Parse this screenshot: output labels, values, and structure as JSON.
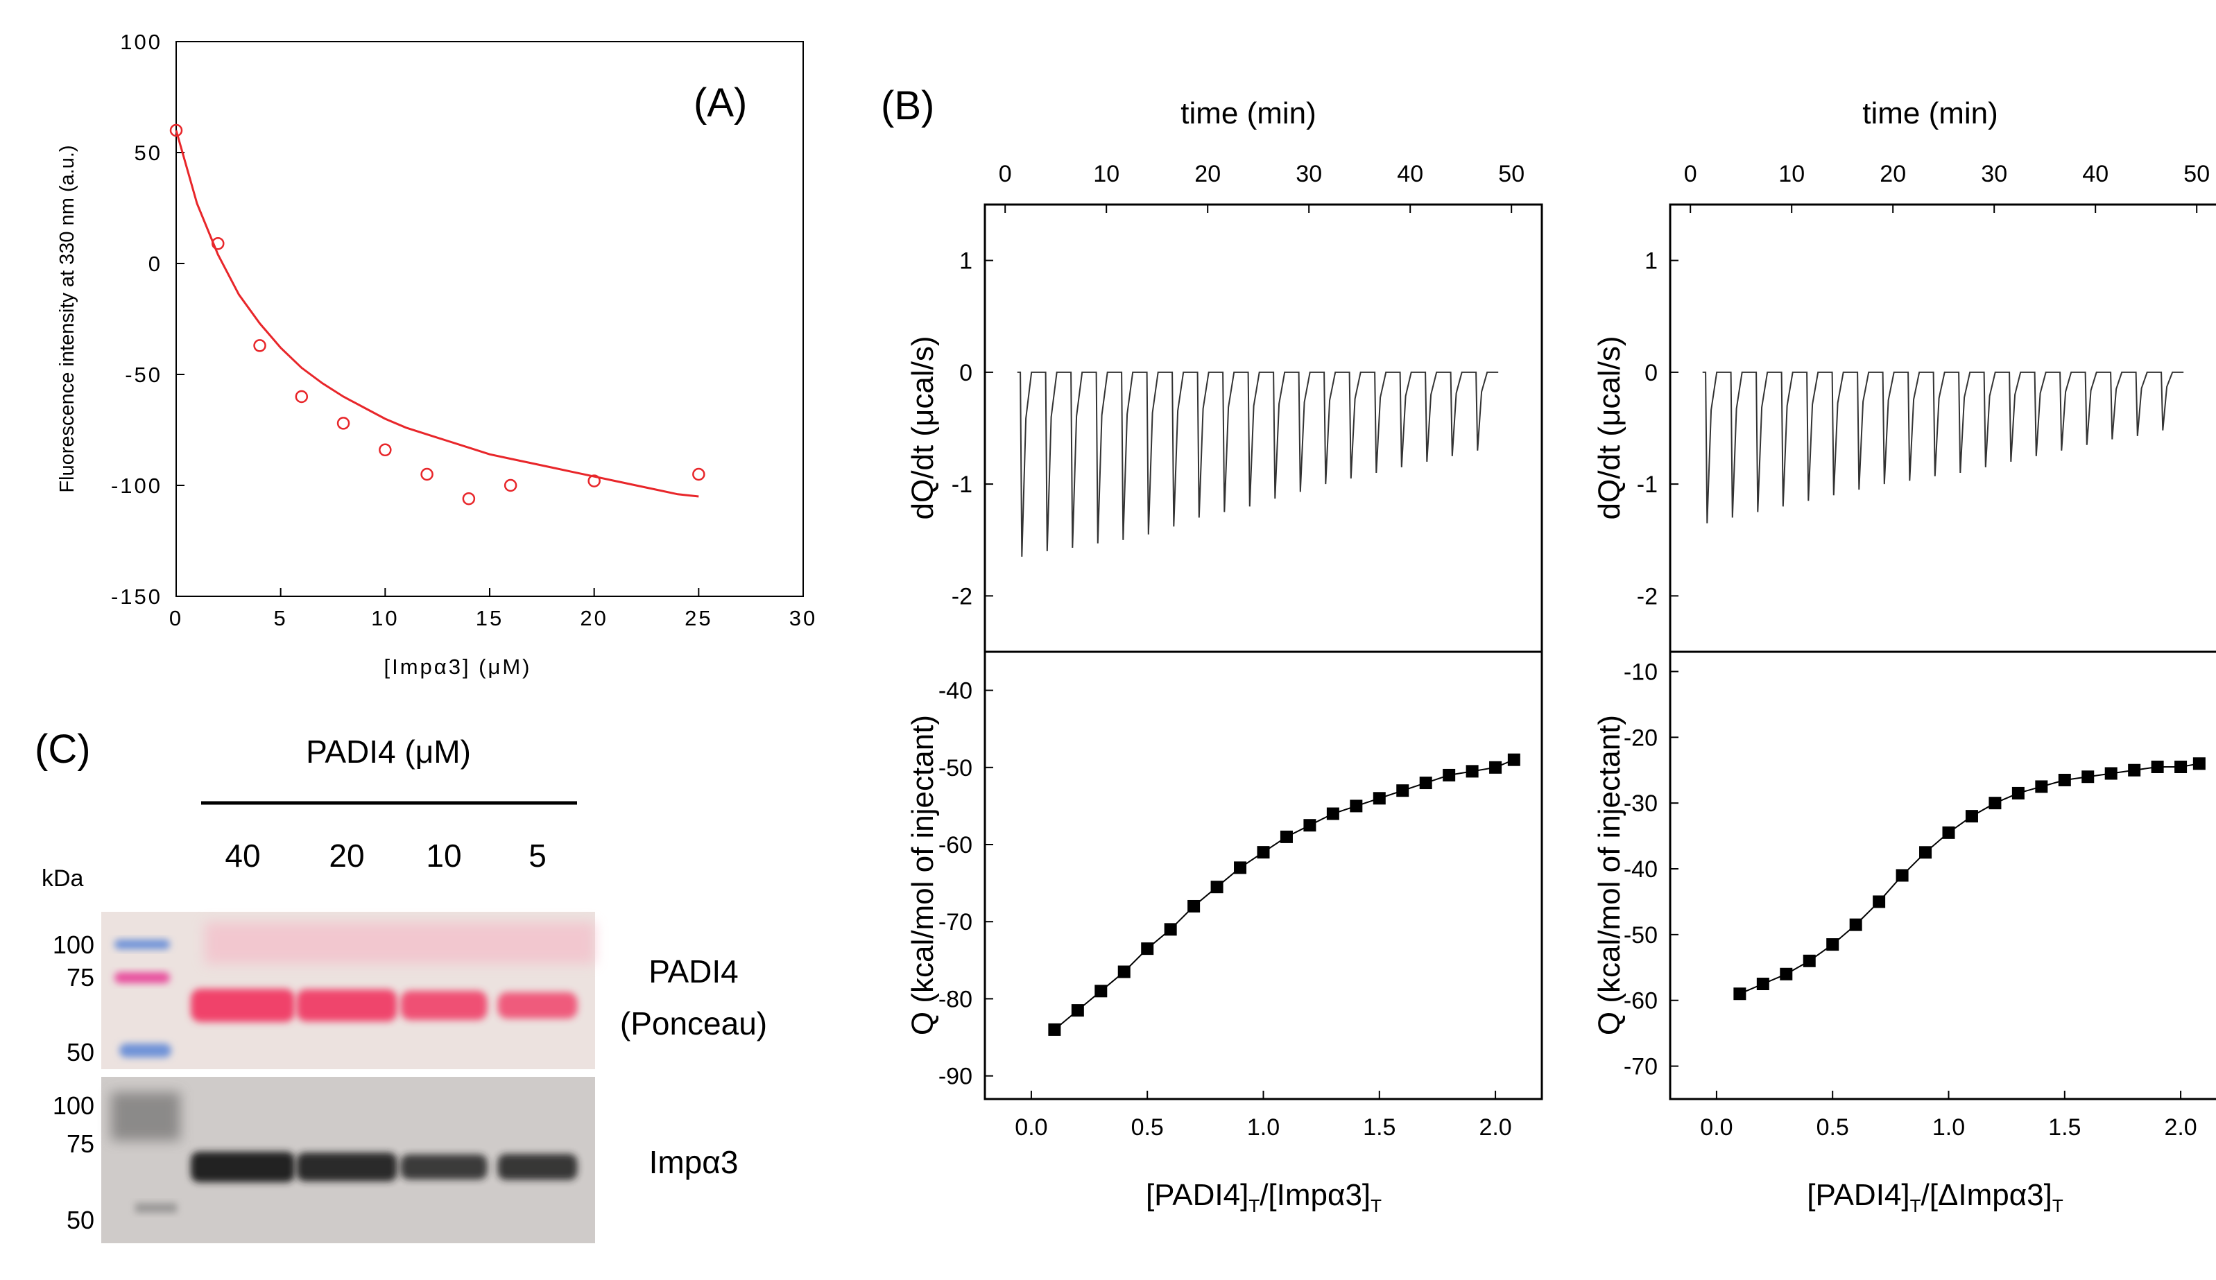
{
  "panel_labels": {
    "a": "(A)",
    "b": "(B)",
    "c": "(C)"
  },
  "chart_data": [
    {
      "id": "A",
      "type": "scatter",
      "title": "(A)",
      "xlabel": "[Impα3] (μM)",
      "ylabel": "Fluorescence intensity at 330 nm (a.u.)",
      "xlim": [
        0,
        30
      ],
      "ylim": [
        -150,
        100
      ],
      "xticks": [
        0,
        5,
        10,
        15,
        20,
        25,
        30
      ],
      "yticks": [
        100,
        50,
        0,
        -50,
        -100,
        -150
      ],
      "points": {
        "x": [
          0,
          2,
          4,
          6,
          8,
          10,
          12,
          14,
          16,
          20,
          25
        ],
        "y": [
          60,
          9,
          -37,
          -60,
          -72,
          -84,
          -95,
          -106,
          -100,
          -98,
          -95
        ]
      },
      "fit_curve": {
        "x": [
          0,
          1,
          2,
          3,
          4,
          5,
          6,
          7,
          8,
          9,
          10,
          11,
          12,
          13,
          14,
          15,
          16,
          17,
          18,
          19,
          20,
          21,
          22,
          23,
          24,
          25
        ],
        "y": [
          60,
          27,
          4,
          -14,
          -27,
          -38,
          -47,
          -54,
          -60,
          -65,
          -70,
          -74,
          -77,
          -80,
          -83,
          -86,
          -88,
          -90,
          -92,
          -94,
          -96,
          -98,
          -100,
          -102,
          -104,
          -105
        ]
      },
      "colors": {
        "marker": "#e8262a",
        "fit": "#e8262a"
      }
    },
    {
      "id": "B-left",
      "type": "line",
      "title": "(B)",
      "top_xlabel": "time (min)",
      "top_xticks": [
        0,
        10,
        20,
        30,
        40,
        50
      ],
      "top_xlim": [
        -2,
        53
      ],
      "raw_ylabel": "dQ/dt (μcal/s)",
      "raw_ylim": [
        -2.5,
        1.5
      ],
      "raw_yticks": [
        1,
        0,
        -1,
        -2
      ],
      "injection_times": [
        1.5,
        4,
        6.5,
        9,
        11.5,
        14,
        16.5,
        19,
        21.5,
        24,
        26.5,
        29,
        31.5,
        34,
        36.5,
        39,
        41.5,
        44,
        46.5
      ],
      "peak_depths": [
        -1.65,
        -1.6,
        -1.57,
        -1.53,
        -1.5,
        -1.45,
        -1.38,
        -1.3,
        -1.25,
        -1.2,
        -1.13,
        -1.07,
        -1.0,
        -0.95,
        -0.9,
        -0.85,
        -0.8,
        -0.75,
        -0.7
      ],
      "bottom_xlabel": "[PADI4]T/[Impα3]T",
      "bottom_xticks": [
        "0.0",
        "0.5",
        "1.0",
        "1.5",
        "2.0"
      ],
      "bottom_xlim": [
        -0.2,
        2.2
      ],
      "bottom_ylabel": "Q (kcal/mol of injectant)",
      "bottom_ylim": [
        -93,
        -35
      ],
      "bottom_yticks": [
        -40,
        -50,
        -60,
        -70,
        -80,
        -90
      ],
      "points": {
        "x": [
          0.1,
          0.2,
          0.3,
          0.4,
          0.5,
          0.6,
          0.7,
          0.8,
          0.9,
          1.0,
          1.1,
          1.2,
          1.3,
          1.4,
          1.5,
          1.6,
          1.7,
          1.8,
          1.9,
          2.0,
          2.08
        ],
        "y": [
          -84,
          -81.5,
          -79,
          -76.5,
          -73.5,
          -71,
          -68,
          -65.5,
          -63,
          -61,
          -59,
          -57.5,
          -56,
          -55,
          -54,
          -53,
          -52,
          -51,
          -50.5,
          -50,
          -49
        ]
      }
    },
    {
      "id": "B-right",
      "type": "line",
      "top_xlabel": "time (min)",
      "top_xticks": [
        0,
        10,
        20,
        30,
        40,
        50
      ],
      "top_xlim": [
        -2,
        53
      ],
      "raw_ylabel": "dQ/dt (μcal/s)",
      "raw_ylim": [
        -2.5,
        1.5
      ],
      "raw_yticks": [
        1,
        0,
        -1,
        -2
      ],
      "injection_times": [
        1.5,
        4,
        6.5,
        9,
        11.5,
        14,
        16.5,
        19,
        21.5,
        24,
        26.5,
        29,
        31.5,
        34,
        36.5,
        39,
        41.5,
        44,
        46.5
      ],
      "peak_depths": [
        -1.35,
        -1.3,
        -1.25,
        -1.2,
        -1.15,
        -1.1,
        -1.05,
        -1.0,
        -0.97,
        -0.93,
        -0.9,
        -0.85,
        -0.8,
        -0.75,
        -0.7,
        -0.65,
        -0.6,
        -0.57,
        -0.52
      ],
      "bottom_xlabel": "[PADI4]T/[ΔImpα3]T",
      "bottom_xticks": [
        "0.0",
        "0.5",
        "1.0",
        "1.5",
        "2.0"
      ],
      "bottom_xlim": [
        -0.2,
        2.2
      ],
      "bottom_ylabel": "Q (kcal/mol of injectant)",
      "bottom_ylim": [
        -75,
        -7
      ],
      "bottom_yticks": [
        -10,
        -20,
        -30,
        -40,
        -50,
        -60,
        -70
      ],
      "points": {
        "x": [
          0.1,
          0.2,
          0.3,
          0.4,
          0.5,
          0.6,
          0.7,
          0.8,
          0.9,
          1.0,
          1.1,
          1.2,
          1.3,
          1.4,
          1.5,
          1.6,
          1.7,
          1.8,
          1.9,
          2.0,
          2.08
        ],
        "y": [
          -59,
          -57.5,
          -56,
          -54,
          -51.5,
          -48.5,
          -45,
          -41,
          -37.5,
          -34.5,
          -32,
          -30,
          -28.5,
          -27.5,
          -26.5,
          -26,
          -25.5,
          -25,
          -24.5,
          -24.5,
          -24
        ]
      }
    }
  ],
  "gel": {
    "title": "PADI4 (μM)",
    "lanes": [
      "40",
      "20",
      "10",
      "5"
    ],
    "kda_label": "kDa",
    "top_markers": [
      "100",
      "75",
      "50"
    ],
    "bottom_markers": [
      "100",
      "75",
      "50"
    ],
    "top_band_label_1": "PADI4",
    "top_band_label_2": "(Ponceau)",
    "bottom_band_label": "Impα3",
    "band_intensity_top": [
      1.0,
      0.95,
      0.8,
      0.65
    ],
    "band_intensity_bottom": [
      1.0,
      0.9,
      0.7,
      0.75
    ],
    "colors": {
      "ponceau": "#f0436b",
      "ladder_blue": "#6f93d8",
      "ladder_pink": "#e8509e",
      "western": "#222222"
    }
  }
}
